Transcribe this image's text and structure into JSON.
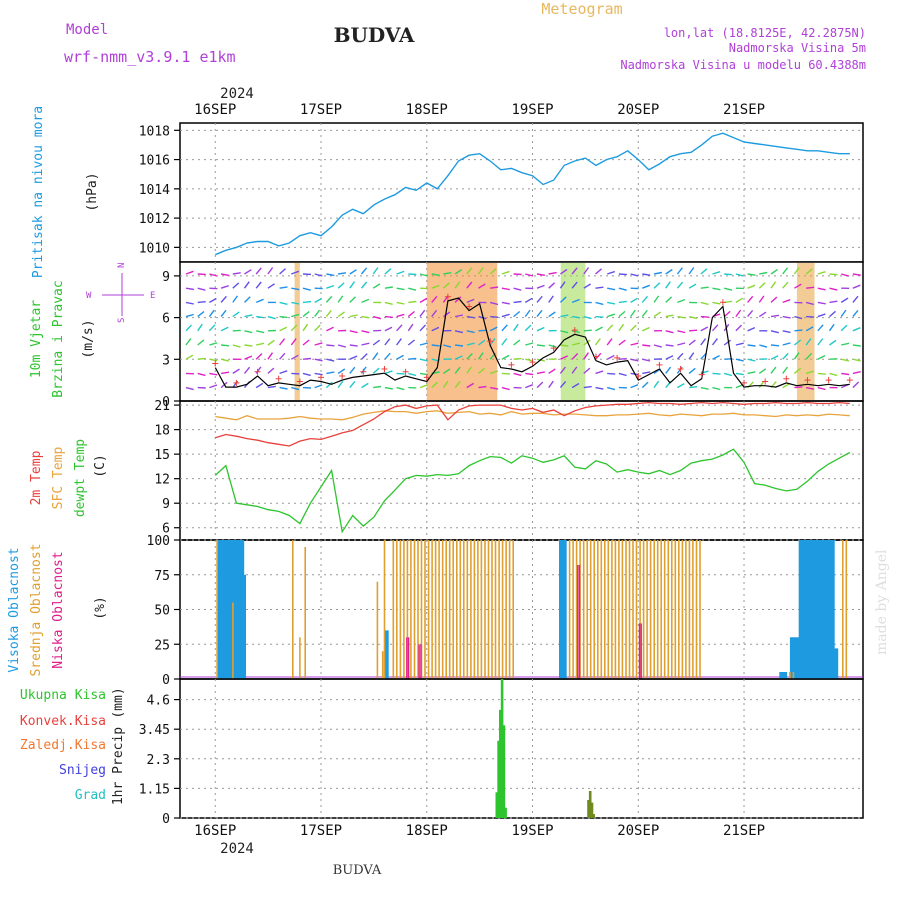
{
  "header": {
    "model_label": "Model",
    "model_name": "wrf-nmm_v3.9.1 e1km",
    "title": "BUDVA",
    "meteogram": "Meteogram",
    "lonlat": "lon,lat (18.8125E, 42.2875N)",
    "elevation": "Nadmorska Visina 5m",
    "model_elevation": "Nadmorska Visina u modelu 60.4388m",
    "year_top": "2024",
    "year_bottom": "2024",
    "footer": "BUDVA",
    "watermark": "made by Angel"
  },
  "colors": {
    "pressure": "#1e9be0",
    "temp2m": "#e8413c",
    "sfc": "#e8a33c",
    "dewpt": "#2ec42e",
    "high_cloud": "#1e9be0",
    "mid_cloud": "#e0a030",
    "low_cloud": "#e01e8c",
    "total_precip": "#2ec42e",
    "snow": "#4040e0",
    "grad": "#20c0c0",
    "purple": "#b040d8",
    "gold": "#e8b860"
  },
  "chart_data": [
    {
      "panel": "pressure",
      "type": "line",
      "ylabel": "Pritisak na nivou mora",
      "unit": "(hPa)",
      "yticks": [
        1010,
        1012,
        1014,
        1016,
        1018
      ],
      "ylim": [
        1009,
        1018.5
      ],
      "x_days": [
        "16SEP",
        "17SEP",
        "18SEP",
        "19SEP",
        "20SEP",
        "21SEP"
      ],
      "x": [
        0,
        6,
        12,
        18,
        24,
        30,
        36,
        42,
        48,
        54,
        60,
        66,
        72,
        78,
        84,
        90,
        96,
        102,
        108,
        114,
        120,
        126,
        132,
        138,
        144,
        150,
        156,
        162,
        168,
        174,
        180,
        186,
        192,
        198,
        204,
        210,
        216,
        222,
        228,
        234,
        240,
        246,
        252,
        258,
        264,
        270,
        276,
        282,
        288,
        294,
        300,
        306,
        312,
        318,
        324,
        330,
        336,
        342,
        348,
        354,
        360
      ],
      "values": [
        1009.5,
        1009.8,
        1010.0,
        1010.3,
        1010.4,
        1010.4,
        1010.1,
        1010.3,
        1010.8,
        1011.0,
        1010.8,
        1011.4,
        1012.2,
        1012.6,
        1012.3,
        1012.9,
        1013.3,
        1013.6,
        1014.1,
        1013.9,
        1014.4,
        1014.0,
        1014.9,
        1015.9,
        1016.3,
        1016.4,
        1015.9,
        1015.3,
        1015.4,
        1015.1,
        1014.9,
        1014.3,
        1014.6,
        1015.6,
        1015.9,
        1016.1,
        1015.6,
        1016.0,
        1016.2,
        1016.6,
        1016.0,
        1015.3,
        1015.7,
        1016.2,
        1016.4,
        1016.5,
        1017.0,
        1017.6,
        1017.8,
        1017.5,
        1017.2,
        1017.1,
        1017.0,
        1016.9,
        1016.8,
        1016.7,
        1016.6,
        1016.6,
        1016.5,
        1016.4,
        1016.4
      ]
    },
    {
      "panel": "wind",
      "type": "line",
      "ylabel_1": "10m Vjetar",
      "ylabel_2": "Brzina i Pravac",
      "unit": "(m/s)",
      "compass": {
        "w": "W",
        "e": "E",
        "n": "N",
        "s": "S"
      },
      "yticks": [
        0,
        3,
        6,
        9
      ],
      "ylim": [
        0,
        10
      ],
      "x": [
        0,
        6,
        12,
        18,
        24,
        30,
        36,
        42,
        48,
        54,
        60,
        66,
        72,
        78,
        84,
        90,
        96,
        102,
        108,
        114,
        120,
        126,
        132,
        138,
        144,
        150,
        156,
        162,
        168,
        174,
        180,
        186,
        192,
        198,
        204,
        210,
        216,
        222,
        228,
        234,
        240,
        246,
        252,
        258,
        264,
        270,
        276,
        282,
        288,
        294,
        300,
        306,
        312,
        318,
        324,
        330,
        336,
        342,
        348,
        354,
        360
      ],
      "values": [
        2.4,
        1.0,
        1.0,
        1.2,
        1.8,
        1.1,
        1.3,
        1.2,
        1.1,
        1.5,
        1.4,
        1.2,
        1.5,
        1.7,
        1.8,
        1.9,
        2.0,
        1.5,
        1.8,
        1.6,
        1.4,
        2.4,
        7.2,
        7.4,
        6.5,
        7.0,
        4.0,
        2.4,
        2.3,
        2.1,
        2.5,
        3.1,
        3.5,
        4.4,
        4.8,
        4.6,
        2.9,
        2.6,
        2.8,
        2.9,
        1.5,
        1.9,
        2.3,
        1.3,
        2.0,
        1.1,
        1.6,
        6.0,
        6.8,
        2.0,
        1.0,
        1.1,
        1.1,
        1.0,
        1.3,
        1.1,
        1.2,
        1.1,
        1.2,
        1.1,
        1.2
      ]
    },
    {
      "panel": "temperature",
      "type": "line",
      "ylabel_1": "2m Temp",
      "ylabel_2": "SFC Temp",
      "ylabel_3": "dewpt Temp",
      "unit": "(C)",
      "yticks": [
        6,
        9,
        12,
        15,
        18,
        21
      ],
      "ylim": [
        4.5,
        21.5
      ],
      "x": [
        0,
        6,
        12,
        18,
        24,
        30,
        36,
        42,
        48,
        54,
        60,
        66,
        72,
        78,
        84,
        90,
        96,
        102,
        108,
        114,
        120,
        126,
        132,
        138,
        144,
        150,
        156,
        162,
        168,
        174,
        180,
        186,
        192,
        198,
        204,
        210,
        216,
        222,
        228,
        234,
        240,
        246,
        252,
        258,
        264,
        270,
        276,
        282,
        288,
        294,
        300,
        306,
        312,
        318,
        324,
        330,
        336,
        342,
        348,
        354,
        360
      ],
      "series": [
        {
          "name": "2m Temp",
          "values": [
            17.0,
            17.4,
            17.2,
            16.9,
            16.7,
            16.4,
            16.2,
            16.0,
            16.6,
            16.9,
            16.8,
            17.2,
            17.6,
            17.9,
            18.6,
            19.3,
            20.2,
            20.8,
            21.0,
            20.6,
            20.9,
            21.0,
            19.2,
            20.4,
            20.9,
            21.0,
            21.0,
            21.0,
            20.6,
            20.4,
            20.6,
            20.1,
            20.4,
            19.7,
            20.3,
            20.7,
            20.9,
            21.0,
            21.1,
            21.1,
            21.2,
            21.3,
            21.2,
            21.2,
            21.1,
            21.2,
            21.3,
            21.2,
            21.3,
            21.2,
            21.1,
            21.2,
            21.2,
            21.3,
            21.2,
            21.2,
            21.3,
            21.2,
            21.2,
            21.3,
            21.2
          ]
        },
        {
          "name": "SFC Temp",
          "values": [
            19.6,
            19.4,
            19.2,
            19.7,
            19.3,
            19.3,
            19.3,
            19.4,
            19.6,
            19.4,
            19.3,
            19.3,
            19.2,
            19.5,
            19.9,
            20.1,
            20.3,
            20.2,
            20.2,
            20.0,
            20.2,
            20.3,
            20.0,
            20.1,
            20.2,
            19.9,
            20.0,
            19.8,
            20.2,
            19.9,
            20.0,
            20.0,
            19.8,
            19.9,
            19.9,
            19.8,
            19.7,
            19.7,
            19.8,
            19.8,
            19.9,
            20.0,
            19.8,
            19.7,
            19.9,
            19.8,
            19.7,
            19.9,
            19.9,
            20.0,
            19.8,
            19.8,
            19.7,
            19.6,
            19.8,
            19.7,
            19.8,
            19.7,
            19.9,
            19.8,
            19.7
          ]
        },
        {
          "name": "dewpt Temp",
          "values": [
            12.4,
            13.6,
            9.0,
            8.8,
            8.6,
            8.2,
            8.0,
            7.5,
            6.5,
            9.0,
            11.0,
            13.0,
            5.5,
            7.5,
            6.2,
            7.3,
            9.3,
            10.6,
            12.0,
            12.4,
            12.3,
            12.5,
            12.4,
            12.6,
            13.6,
            14.2,
            14.7,
            14.6,
            13.9,
            14.8,
            14.5,
            14.0,
            14.3,
            14.8,
            13.4,
            13.2,
            14.2,
            13.8,
            12.8,
            13.1,
            12.8,
            12.6,
            13.0,
            12.5,
            13.0,
            13.9,
            14.2,
            14.4,
            14.9,
            15.6,
            14.0,
            11.4,
            11.2,
            10.8,
            10.5,
            10.7,
            11.7,
            12.9,
            13.8,
            14.5,
            15.2
          ]
        }
      ]
    },
    {
      "panel": "clouds",
      "type": "bar",
      "ylabel_1": "Visoka Oblacnost",
      "ylabel_2": "Srednja Oblacnost",
      "ylabel_3": "Niska Oblacnost",
      "unit": "(%)",
      "yticks": [
        0,
        25,
        50,
        75,
        100
      ],
      "ylim": [
        0,
        100
      ],
      "high": {
        "name": "Visoka Oblacnost",
        "segments": [
          [
            1,
            15,
            100
          ],
          [
            16,
            16,
            75
          ],
          [
            96,
            97,
            35
          ],
          [
            195,
            198,
            100
          ],
          [
            320,
            323,
            5
          ],
          [
            326,
            330,
            30
          ],
          [
            331,
            350,
            100
          ],
          [
            351,
            352,
            22
          ]
        ]
      },
      "mid": {
        "name": "Srednja Oblacnost",
        "segments": [
          [
            0,
            1,
            100
          ],
          [
            9,
            10,
            55
          ],
          [
            43,
            44,
            100
          ],
          [
            47,
            48,
            30
          ],
          [
            50,
            51,
            95
          ],
          [
            91,
            92,
            70
          ],
          [
            94,
            95,
            20
          ],
          [
            95,
            96,
            100
          ],
          [
            100,
            168,
            100
          ],
          [
            200,
            275,
            100
          ],
          [
            325,
            328,
            5
          ],
          [
            355,
            358,
            100
          ]
        ]
      },
      "low": {
        "name": "Niska Oblacnost",
        "segments": [
          [
            108,
            109,
            30
          ],
          [
            115,
            116,
            25
          ],
          [
            205,
            206,
            82
          ],
          [
            240,
            241,
            40
          ]
        ]
      }
    },
    {
      "panel": "precipitation",
      "type": "bar",
      "ylabel": "1hr Precip",
      "unit": "(mm)",
      "yticks": [
        0,
        1.15,
        2.3,
        3.45,
        4.6
      ],
      "ylim": [
        0,
        5.4
      ],
      "legend": [
        "Ukupna Kisa",
        "Konvek.Kisa",
        "Zaledj.Kisa",
        "Snijeg",
        "Grad"
      ],
      "total_precip": {
        "name": "Ukupna Kisa",
        "x": [
          159,
          160,
          161,
          162,
          163,
          164
        ],
        "values": [
          1.0,
          3.0,
          4.2,
          5.4,
          3.6,
          0.4
        ]
      },
      "convective": {
        "name": "Konvek.Kisa",
        "x": [
          211,
          212,
          213,
          214
        ],
        "values": [
          0.7,
          1.05,
          0.6,
          0.15
        ]
      }
    }
  ]
}
